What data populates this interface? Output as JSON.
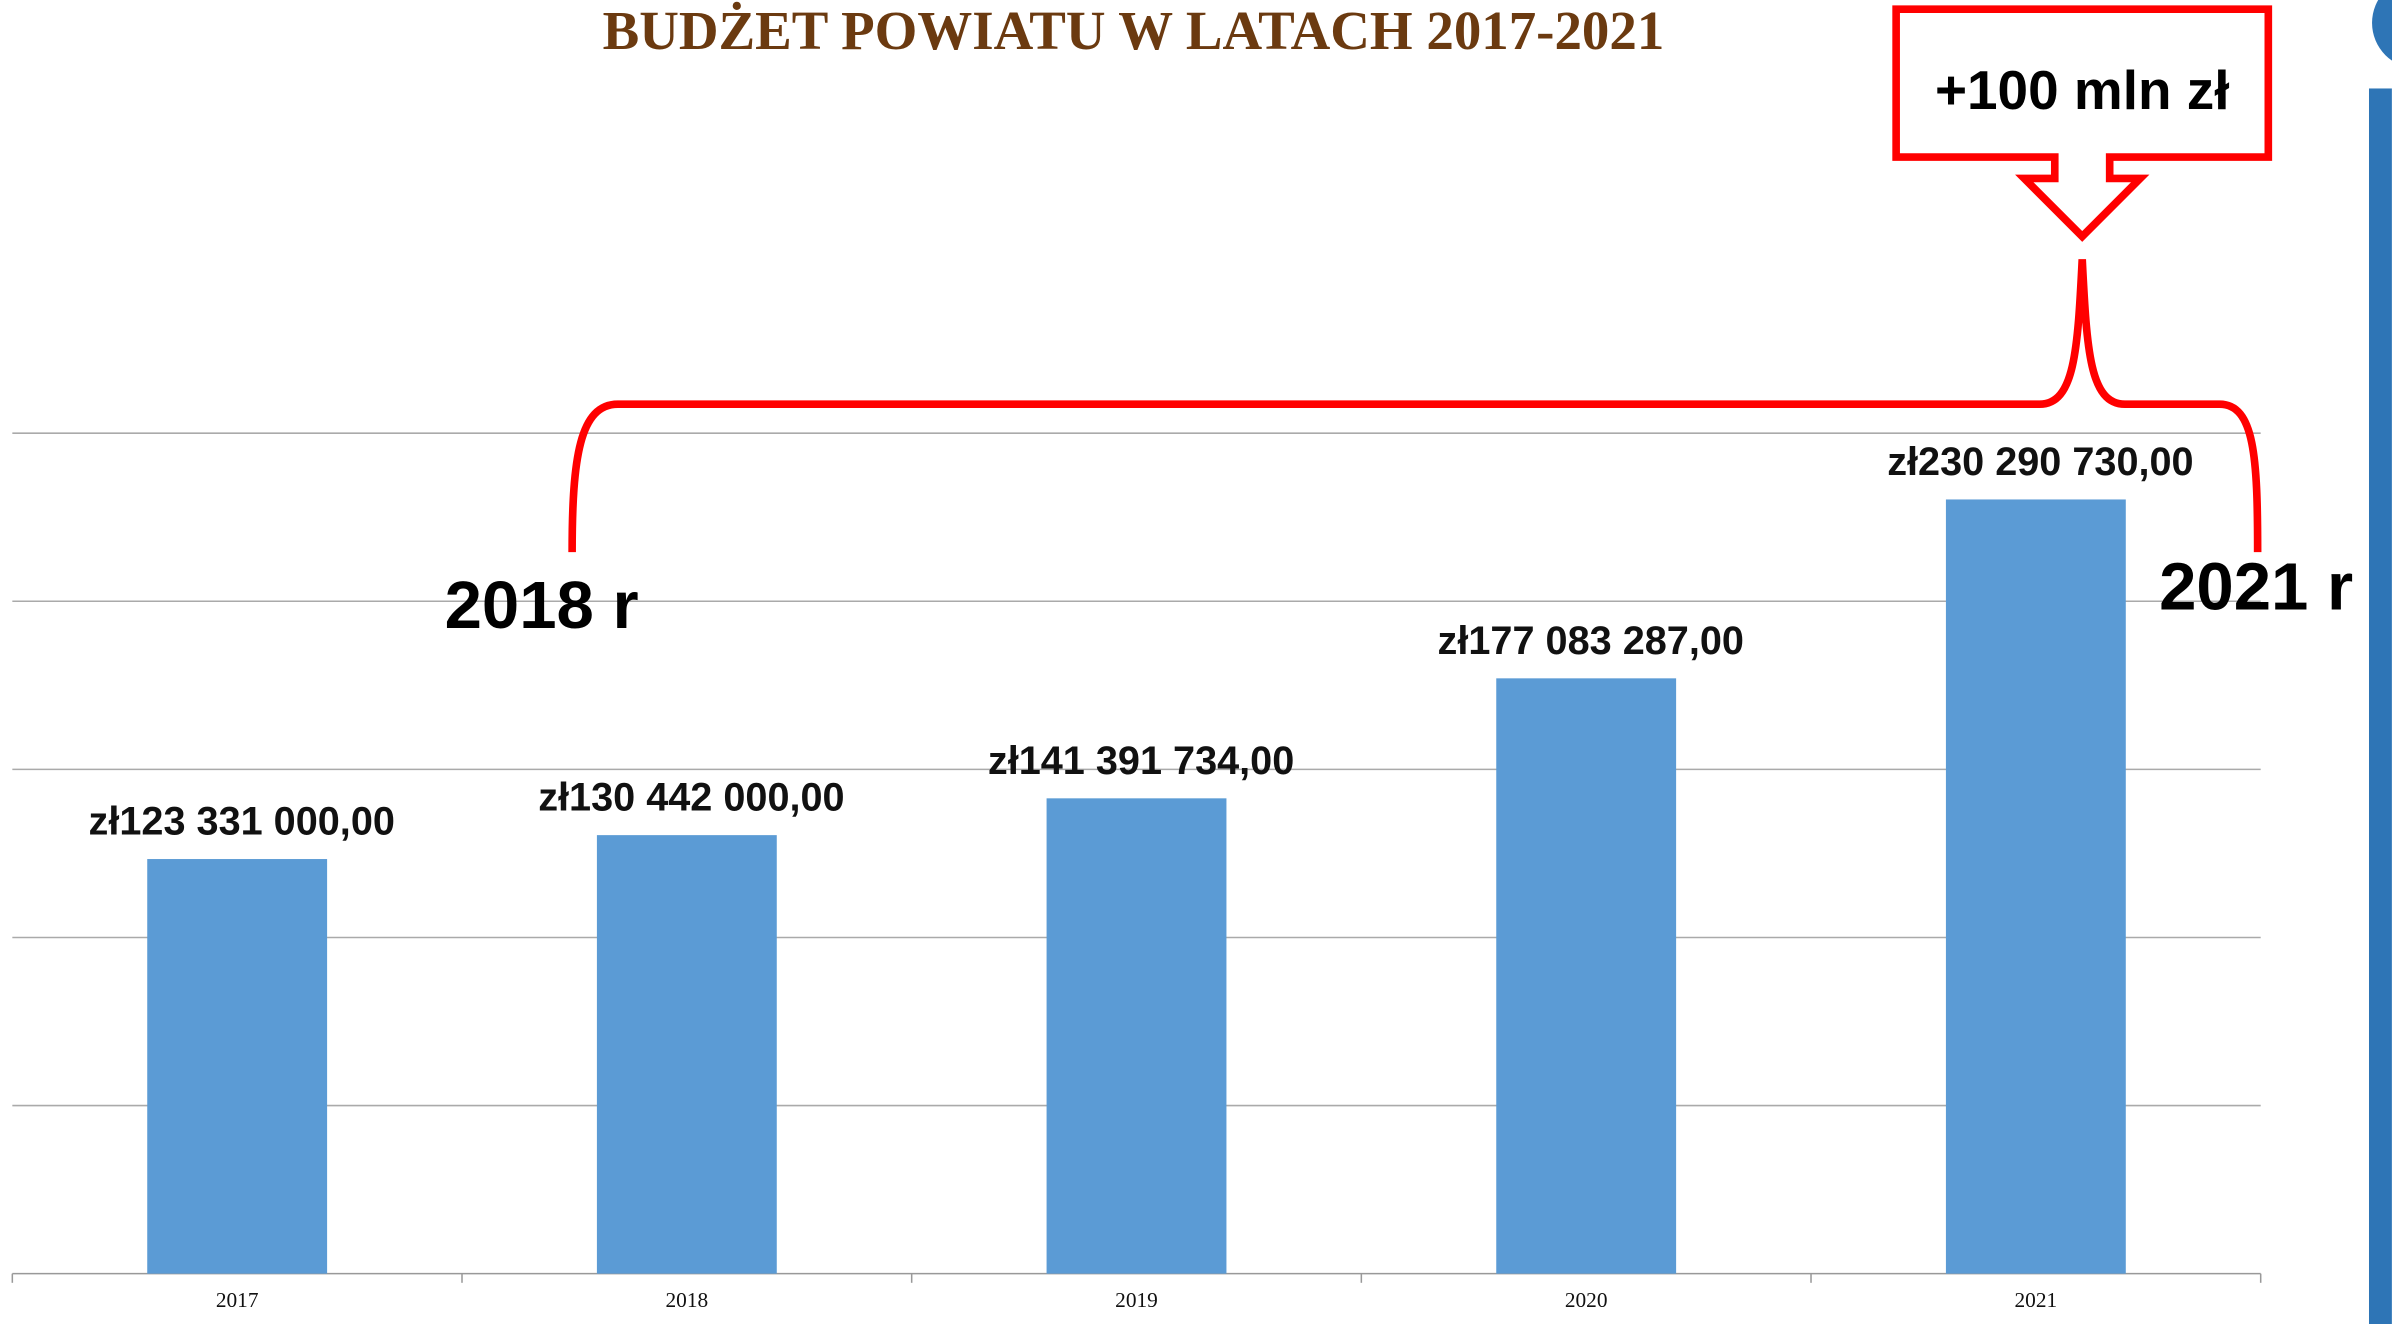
{
  "chart_data": {
    "type": "bar",
    "title": "BUDŻET POWIATU W LATACH 2017-2021",
    "categories": [
      "2017",
      "2018",
      "2019",
      "2020",
      "2021"
    ],
    "values": [
      123331000,
      130442000,
      141391734,
      177083287,
      230290730
    ],
    "value_labels": [
      "zł123 331 000,00",
      "zł130 442 000,00",
      "zł141 391 734,00",
      "zł177 083 287,00",
      "zł230 290 730,00"
    ],
    "color": "#5b9bd5",
    "ylim": [
      0,
      250000000
    ],
    "yticks": [
      0,
      50000000,
      100000000,
      150000000,
      200000000,
      250000000
    ],
    "grid": true,
    "annotations": [
      "2018 r",
      "2021 r",
      "+100 mln zł"
    ]
  }
}
